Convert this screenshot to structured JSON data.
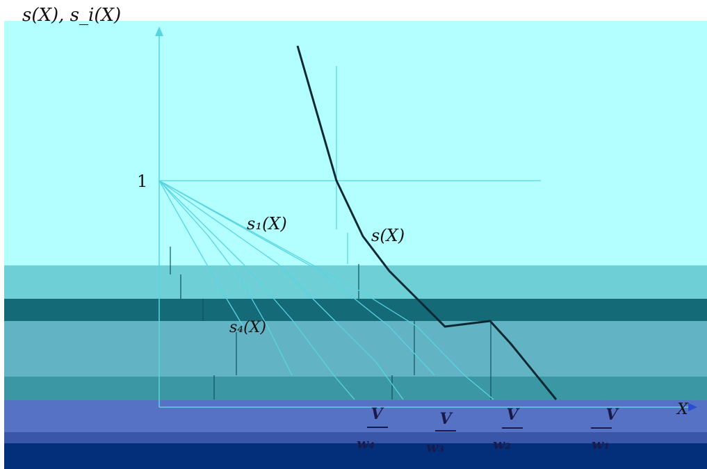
{
  "y_axis_label": "s(X), s_i(X)",
  "y_tick_one": "1",
  "curves": {
    "aggregate": "s(X)",
    "first": "s₁(X)",
    "fourth": "s₄(X)"
  },
  "x_axis_label": "X",
  "x_ticks": [
    {
      "num": "V",
      "den": "w₄"
    },
    {
      "num": "V",
      "den": "w₃"
    },
    {
      "num": "V",
      "den": "w₂"
    },
    {
      "num": "V",
      "den": "w₁"
    }
  ],
  "colors": {
    "light_cyan": "#b3ffff",
    "teal_light": "#6fcfd6",
    "teal_dark": "#156a78",
    "teal_mid": "#62b4c4",
    "blue_band": "#5672c5",
    "navy_band": "#022e7a",
    "line_light": "#5ad3e0",
    "line_dark": "#0a2a33"
  }
}
